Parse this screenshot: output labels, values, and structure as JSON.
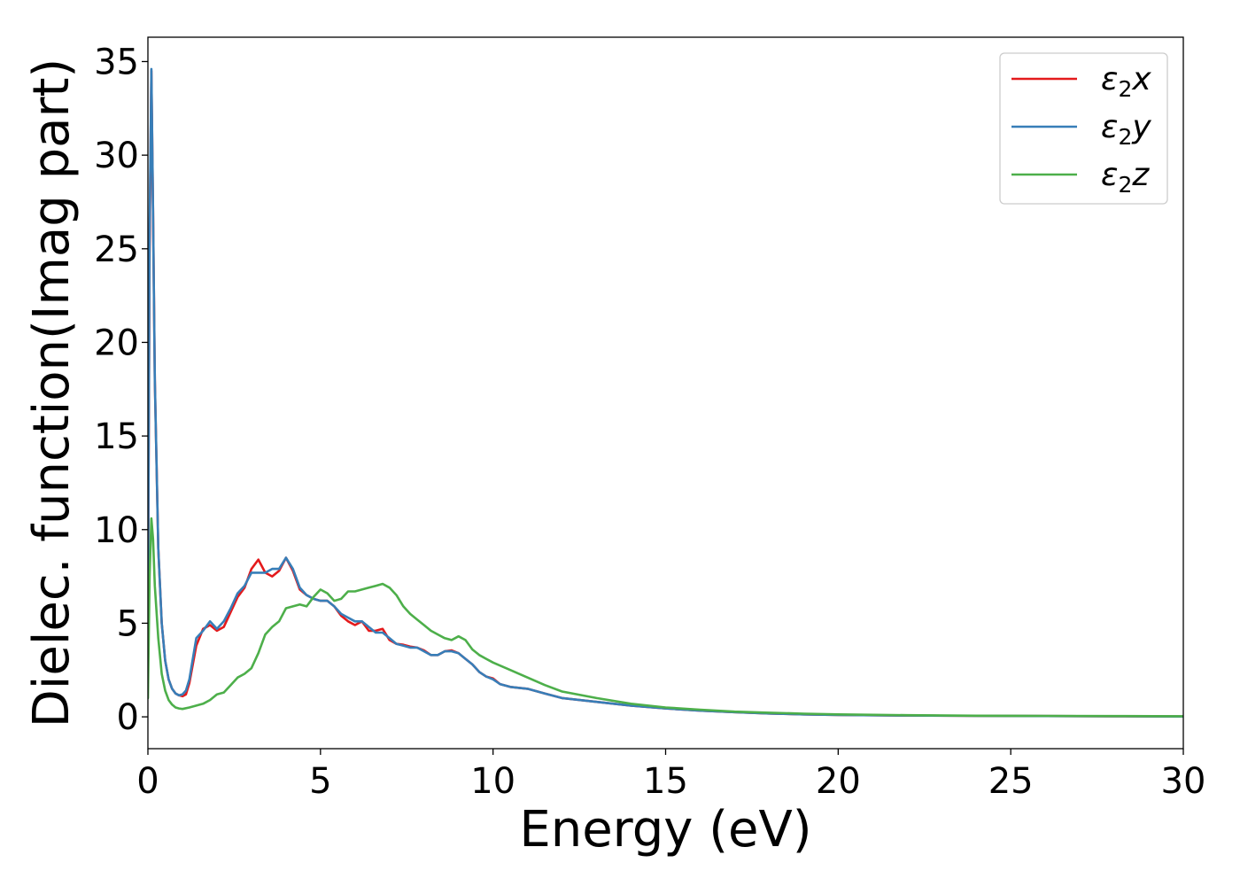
{
  "chart_data": {
    "type": "line",
    "xlabel": "Energy (eV)",
    "ylabel": "Dielec. function(Imag part)",
    "xlim": [
      0,
      30
    ],
    "ylim": [
      -1.7,
      36.3
    ],
    "xticks": [
      "0",
      "5",
      "10",
      "15",
      "20",
      "25",
      "30"
    ],
    "yticks": [
      "0",
      "5",
      "10",
      "15",
      "20",
      "25",
      "30",
      "35"
    ],
    "grid": false,
    "legend_position": "top-right",
    "series": [
      {
        "name": "ε2x",
        "legend_base": "ε",
        "legend_sub": "2",
        "legend_suffix": "x",
        "color": "#e41a1c",
        "x": [
          0,
          0.05,
          0.1,
          0.15,
          0.2,
          0.3,
          0.4,
          0.5,
          0.6,
          0.7,
          0.8,
          0.9,
          1.0,
          1.1,
          1.2,
          1.4,
          1.6,
          1.8,
          2.0,
          2.2,
          2.4,
          2.6,
          2.8,
          3.0,
          3.2,
          3.4,
          3.6,
          3.8,
          4.0,
          4.2,
          4.4,
          4.6,
          4.8,
          5.0,
          5.2,
          5.4,
          5.6,
          5.8,
          6.0,
          6.2,
          6.4,
          6.6,
          6.8,
          7.0,
          7.2,
          7.4,
          7.6,
          7.8,
          8.0,
          8.2,
          8.4,
          8.6,
          8.8,
          9.0,
          9.2,
          9.4,
          9.6,
          9.8,
          10.0,
          10.2,
          10.5,
          11.0,
          11.5,
          12.0,
          13.0,
          14.0,
          15.0,
          16.0,
          17.0,
          18.0,
          19.0,
          20.0,
          22.0,
          24.0,
          26.0,
          28.0,
          30.0
        ],
        "y": [
          5,
          25,
          34.5,
          27,
          18,
          9,
          5,
          3,
          2,
          1.5,
          1.25,
          1.15,
          1.1,
          1.2,
          1.8,
          3.8,
          4.7,
          4.9,
          4.6,
          4.8,
          5.6,
          6.4,
          6.9,
          7.9,
          8.4,
          7.7,
          7.5,
          7.8,
          8.5,
          7.8,
          6.8,
          6.5,
          6.3,
          6.2,
          6.2,
          5.9,
          5.4,
          5.1,
          4.9,
          5.1,
          4.6,
          4.6,
          4.7,
          4.1,
          3.9,
          3.85,
          3.75,
          3.7,
          3.55,
          3.3,
          3.3,
          3.5,
          3.55,
          3.4,
          3.1,
          2.8,
          2.4,
          2.15,
          2.05,
          1.75,
          1.6,
          1.5,
          1.25,
          1.0,
          0.8,
          0.6,
          0.45,
          0.33,
          0.25,
          0.18,
          0.13,
          0.1,
          0.07,
          0.05,
          0.04,
          0.03,
          0.02
        ]
      },
      {
        "name": "ε2y",
        "legend_base": "ε",
        "legend_sub": "2",
        "legend_suffix": "y",
        "color": "#377eb8",
        "x": [
          0,
          0.05,
          0.1,
          0.15,
          0.2,
          0.3,
          0.4,
          0.5,
          0.6,
          0.7,
          0.8,
          0.9,
          1.0,
          1.1,
          1.2,
          1.4,
          1.6,
          1.8,
          2.0,
          2.2,
          2.4,
          2.6,
          2.8,
          3.0,
          3.2,
          3.4,
          3.6,
          3.8,
          4.0,
          4.2,
          4.4,
          4.6,
          4.8,
          5.0,
          5.2,
          5.4,
          5.6,
          5.8,
          6.0,
          6.2,
          6.4,
          6.6,
          6.8,
          7.0,
          7.2,
          7.4,
          7.6,
          7.8,
          8.0,
          8.2,
          8.4,
          8.6,
          8.8,
          9.0,
          9.2,
          9.4,
          9.6,
          9.8,
          10.0,
          10.2,
          10.5,
          11.0,
          11.5,
          12.0,
          13.0,
          14.0,
          15.0,
          16.0,
          17.0,
          18.0,
          19.0,
          20.0,
          22.0,
          24.0,
          26.0,
          28.0,
          30.0
        ],
        "y": [
          5,
          26,
          34.6,
          27,
          18,
          9,
          5,
          3,
          2,
          1.5,
          1.25,
          1.15,
          1.2,
          1.4,
          2.0,
          4.2,
          4.6,
          5.1,
          4.7,
          5.1,
          5.8,
          6.6,
          7.0,
          7.7,
          7.7,
          7.7,
          7.9,
          7.9,
          8.5,
          7.9,
          6.9,
          6.5,
          6.3,
          6.2,
          6.2,
          5.9,
          5.5,
          5.3,
          5.1,
          5.1,
          4.8,
          4.5,
          4.5,
          4.2,
          3.9,
          3.8,
          3.7,
          3.7,
          3.5,
          3.3,
          3.3,
          3.5,
          3.5,
          3.4,
          3.1,
          2.8,
          2.4,
          2.15,
          2.0,
          1.75,
          1.6,
          1.5,
          1.25,
          1.0,
          0.8,
          0.6,
          0.45,
          0.33,
          0.25,
          0.18,
          0.13,
          0.1,
          0.07,
          0.05,
          0.04,
          0.03,
          0.02
        ]
      },
      {
        "name": "ε2z",
        "legend_base": "ε",
        "legend_sub": "2",
        "legend_suffix": "z",
        "color": "#4daf4a",
        "x": [
          0,
          0.05,
          0.1,
          0.15,
          0.2,
          0.3,
          0.4,
          0.5,
          0.6,
          0.7,
          0.8,
          0.9,
          1.0,
          1.2,
          1.4,
          1.6,
          1.8,
          2.0,
          2.2,
          2.4,
          2.6,
          2.8,
          3.0,
          3.2,
          3.4,
          3.6,
          3.8,
          4.0,
          4.2,
          4.4,
          4.6,
          4.8,
          5.0,
          5.2,
          5.4,
          5.6,
          5.8,
          6.0,
          6.2,
          6.4,
          6.6,
          6.8,
          7.0,
          7.2,
          7.4,
          7.6,
          7.8,
          8.0,
          8.2,
          8.4,
          8.6,
          8.8,
          9.0,
          9.2,
          9.4,
          9.6,
          9.8,
          10.0,
          10.5,
          11.0,
          11.5,
          12.0,
          13.0,
          14.0,
          15.0,
          16.0,
          17.0,
          18.0,
          19.0,
          20.0,
          22.0,
          24.0,
          26.0,
          28.0,
          30.0
        ],
        "y": [
          1.0,
          7.5,
          10.6,
          9.5,
          7,
          4.2,
          2.3,
          1.4,
          0.9,
          0.65,
          0.5,
          0.45,
          0.42,
          0.5,
          0.6,
          0.7,
          0.9,
          1.2,
          1.3,
          1.7,
          2.1,
          2.3,
          2.6,
          3.4,
          4.4,
          4.8,
          5.1,
          5.8,
          5.9,
          6.0,
          5.9,
          6.4,
          6.8,
          6.6,
          6.2,
          6.3,
          6.7,
          6.7,
          6.8,
          6.9,
          7.0,
          7.1,
          6.9,
          6.5,
          5.9,
          5.5,
          5.2,
          4.9,
          4.6,
          4.4,
          4.2,
          4.1,
          4.3,
          4.1,
          3.6,
          3.3,
          3.1,
          2.9,
          2.5,
          2.1,
          1.7,
          1.35,
          1.0,
          0.7,
          0.5,
          0.38,
          0.28,
          0.22,
          0.17,
          0.13,
          0.09,
          0.06,
          0.05,
          0.04,
          0.03
        ]
      }
    ]
  }
}
